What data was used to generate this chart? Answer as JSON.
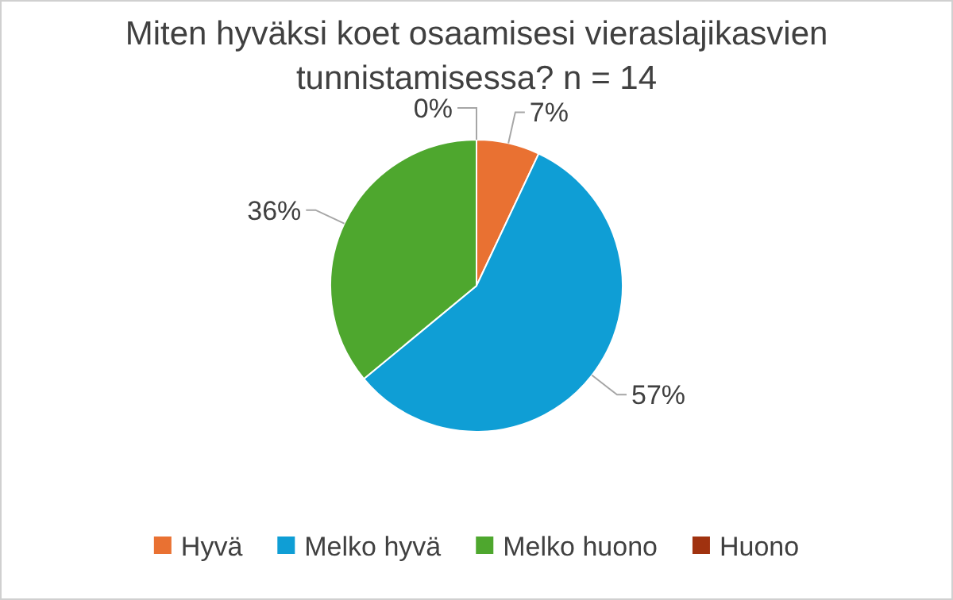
{
  "chart_data": {
    "type": "pie",
    "title": "Miten hyväksi koet osaamisesi vieraslajikasvien tunnistamisessa? n = 14",
    "categories": [
      "Hyvä",
      "Melko hyvä",
      "Melko huono",
      "Huono"
    ],
    "values": [
      7,
      57,
      36,
      0
    ],
    "colors": [
      "#e97132",
      "#0f9ed5",
      "#4ea72e",
      "#a0320f"
    ],
    "value_labels": [
      "7%",
      "57%",
      "36%",
      "0%"
    ],
    "legend": "bottom"
  }
}
